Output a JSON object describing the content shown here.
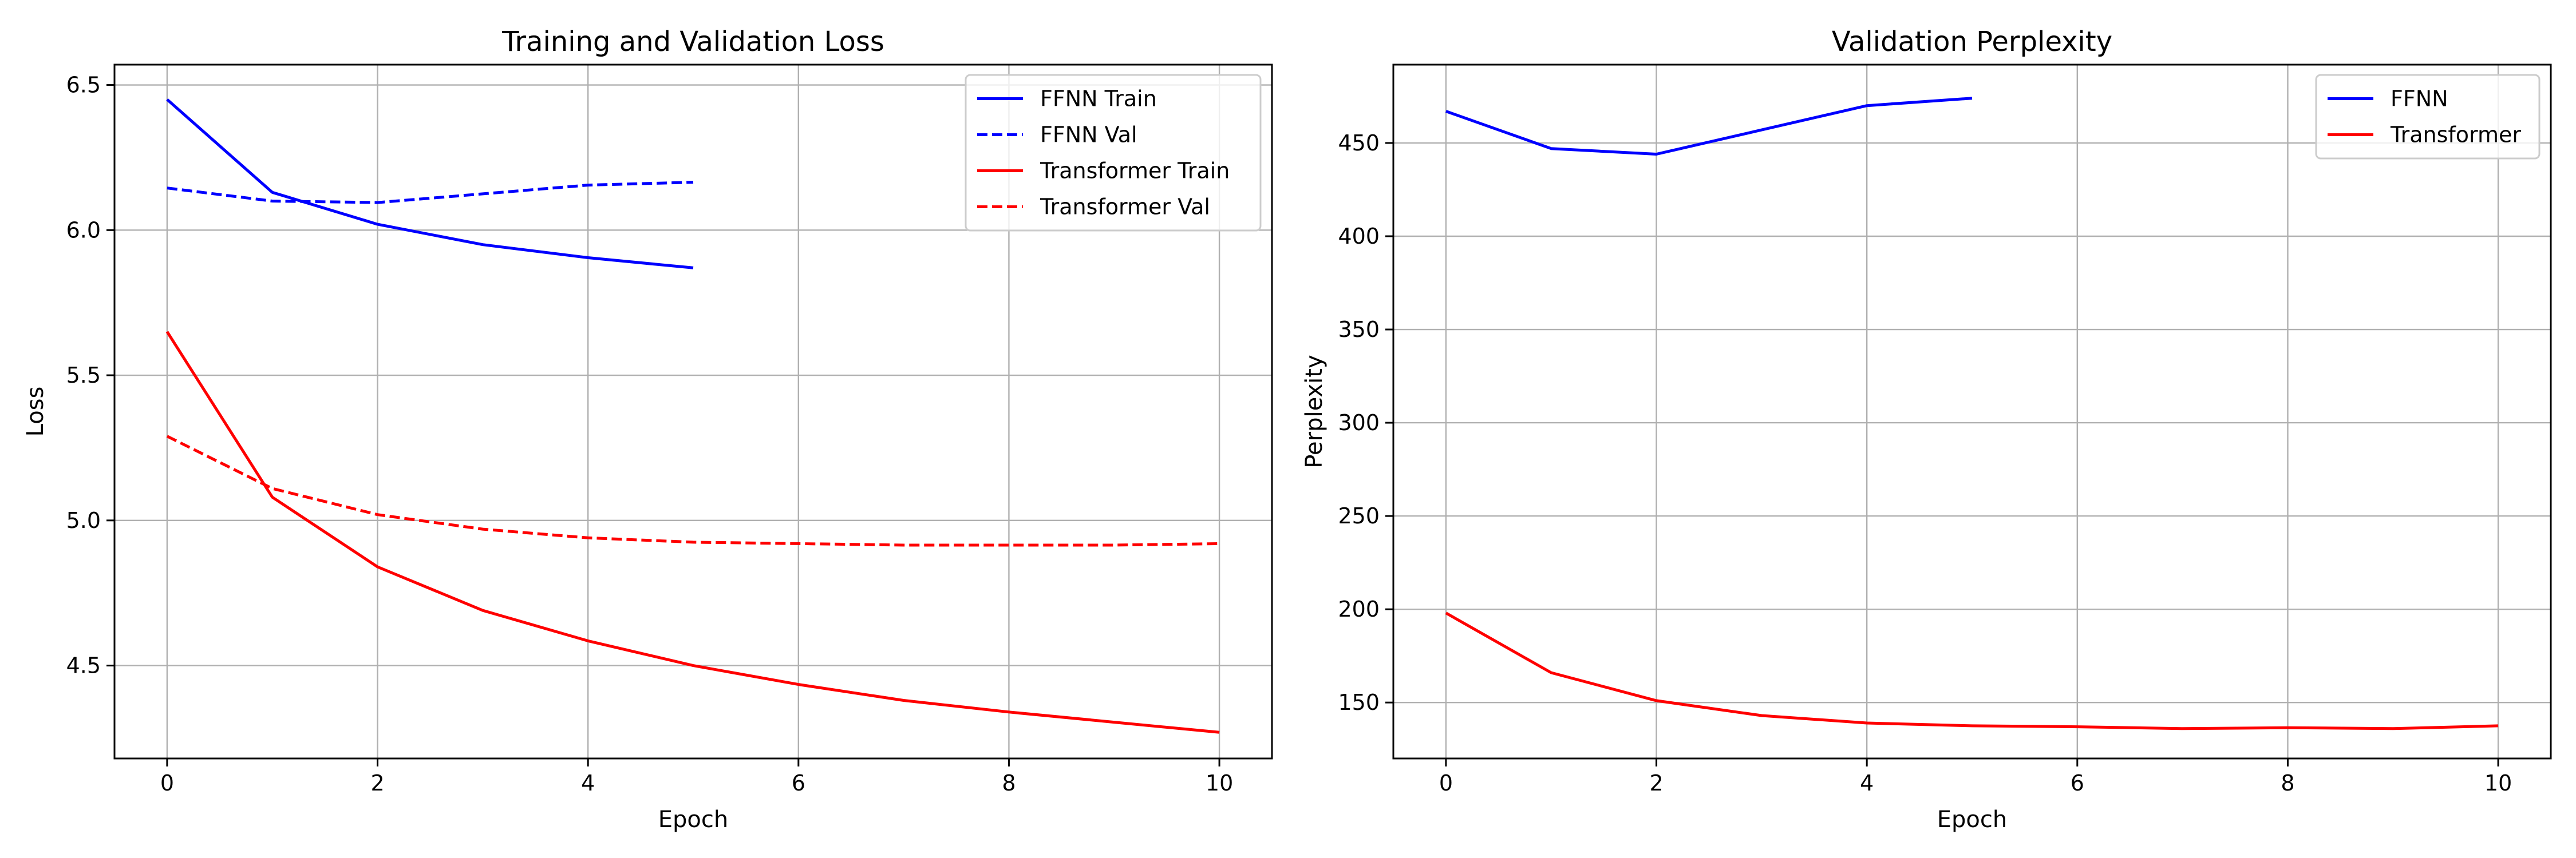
{
  "chart_data": [
    {
      "type": "line",
      "title": "Training and Validation Loss",
      "xlabel": "Epoch",
      "ylabel": "Loss",
      "xlim": [
        -0.5,
        10.5
      ],
      "ylim": [
        4.18,
        6.57
      ],
      "xticks": [
        0,
        2,
        4,
        6,
        8,
        10
      ],
      "yticks": [
        4.5,
        5.0,
        5.5,
        6.0,
        6.5
      ],
      "ytick_labels": [
        "4.5",
        "5.0",
        "5.5",
        "6.0",
        "6.5"
      ],
      "grid": true,
      "legend_position": "top-right",
      "series": [
        {
          "name": "FFNN Train",
          "color": "#0000ff",
          "dash": "solid",
          "x": [
            0,
            1,
            2,
            3,
            4,
            5
          ],
          "y": [
            6.45,
            6.13,
            6.02,
            5.95,
            5.905,
            5.87
          ]
        },
        {
          "name": "FFNN Val",
          "color": "#0000ff",
          "dash": "dashed",
          "x": [
            0,
            1,
            2,
            3,
            4,
            5
          ],
          "y": [
            6.145,
            6.1,
            6.095,
            6.125,
            6.155,
            6.165
          ]
        },
        {
          "name": "Transformer Train",
          "color": "#ff0000",
          "dash": "solid",
          "x": [
            0,
            1,
            2,
            3,
            4,
            5,
            6,
            7,
            8,
            9,
            10
          ],
          "y": [
            5.65,
            5.08,
            4.84,
            4.69,
            4.585,
            4.5,
            4.435,
            4.38,
            4.34,
            4.305,
            4.27
          ]
        },
        {
          "name": "Transformer Val",
          "color": "#ff0000",
          "dash": "dashed",
          "x": [
            0,
            1,
            2,
            3,
            4,
            5,
            6,
            7,
            8,
            9,
            10
          ],
          "y": [
            5.29,
            5.11,
            5.02,
            4.97,
            4.94,
            4.925,
            4.92,
            4.915,
            4.915,
            4.915,
            4.92
          ]
        }
      ]
    },
    {
      "type": "line",
      "title": "Validation Perplexity",
      "xlabel": "Epoch",
      "ylabel": "Perplexity",
      "xlim": [
        -0.5,
        10.5
      ],
      "ylim": [
        120,
        492
      ],
      "xticks": [
        0,
        2,
        4,
        6,
        8,
        10
      ],
      "yticks": [
        150,
        200,
        250,
        300,
        350,
        400,
        450
      ],
      "ytick_labels": [
        "150",
        "200",
        "250",
        "300",
        "350",
        "400",
        "450"
      ],
      "grid": true,
      "legend_position": "top-right",
      "series": [
        {
          "name": "FFNN",
          "color": "#0000ff",
          "dash": "solid",
          "x": [
            0,
            1,
            2,
            3,
            4,
            5
          ],
          "y": [
            467,
            447,
            444,
            457,
            470,
            474
          ]
        },
        {
          "name": "Transformer",
          "color": "#ff0000",
          "dash": "solid",
          "x": [
            0,
            1,
            2,
            3,
            4,
            5,
            6,
            7,
            8,
            9,
            10
          ],
          "y": [
            198,
            166,
            151,
            143,
            139,
            137.5,
            137,
            136,
            136.5,
            136,
            137.5
          ]
        }
      ]
    }
  ]
}
